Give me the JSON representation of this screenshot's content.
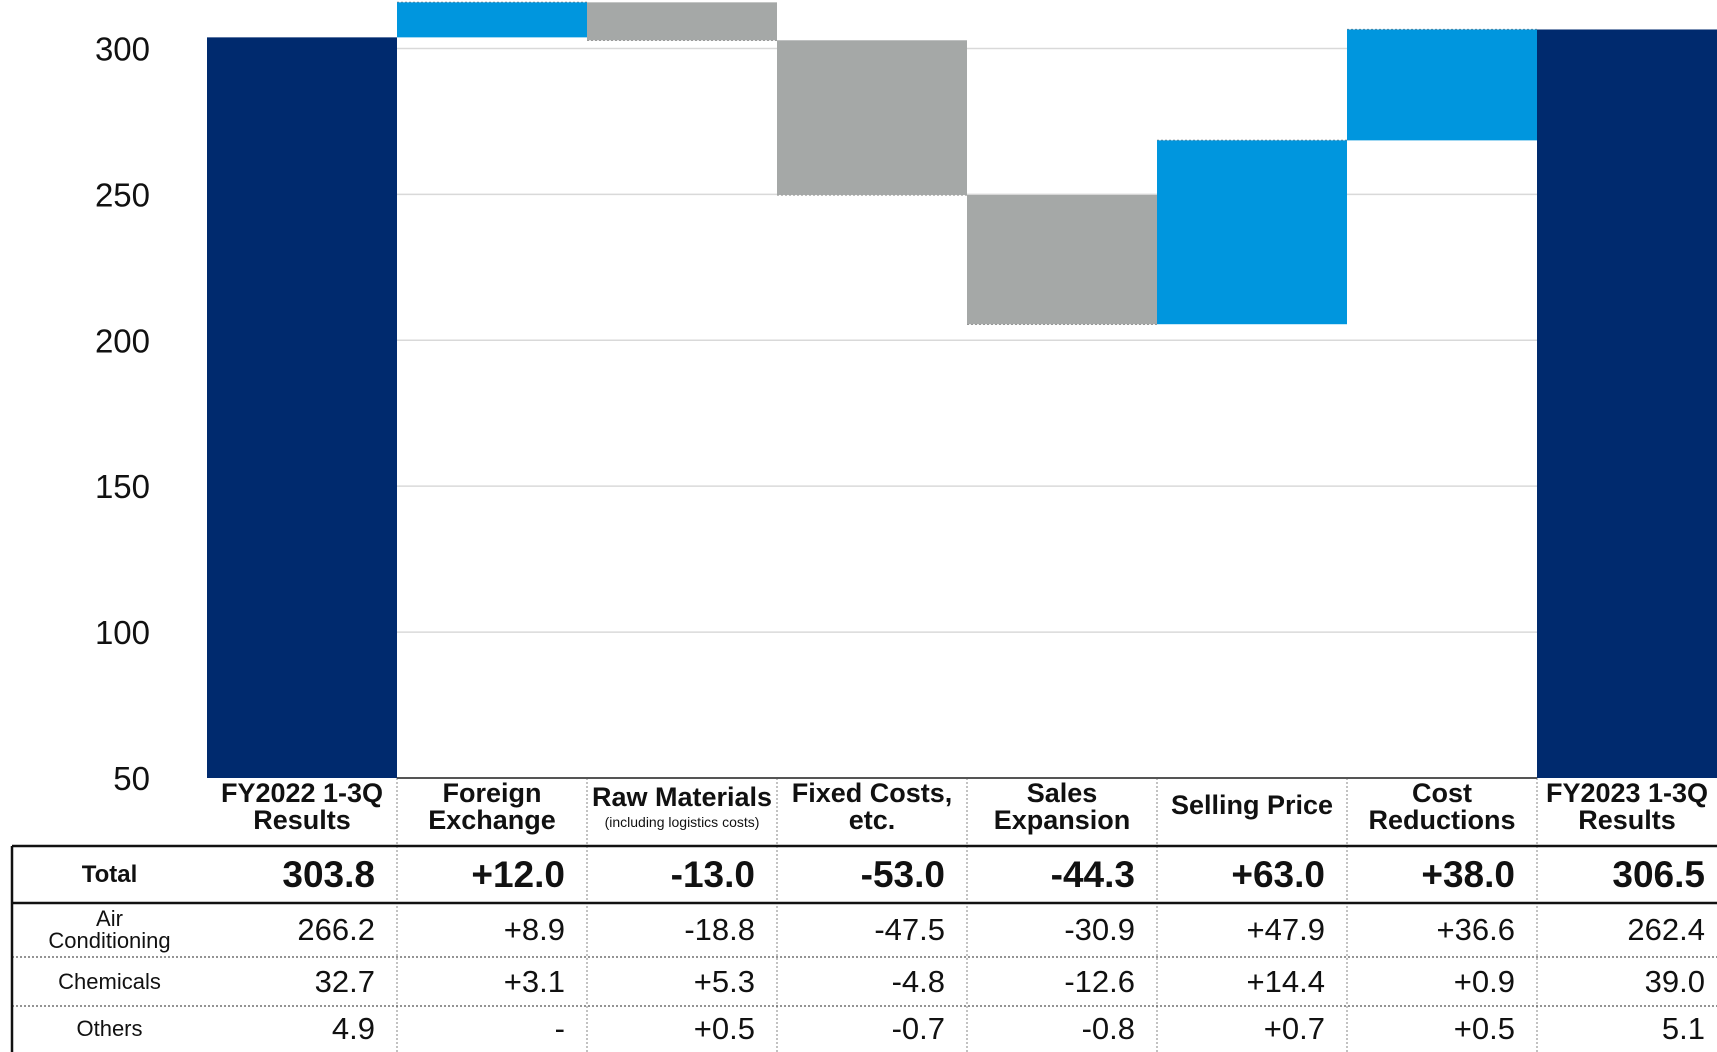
{
  "chart_data": {
    "type": "bar",
    "subtype": "waterfall",
    "ylim": [
      50,
      310
    ],
    "yticks": [
      50,
      100,
      150,
      200,
      250,
      300
    ],
    "grid": true,
    "categories": [
      {
        "label": "FY2022 1-3Q\nResults",
        "sublabel": "",
        "kind": "total",
        "value": 303.8
      },
      {
        "label": "Foreign\nExchange",
        "sublabel": "",
        "kind": "delta",
        "value": 12.0
      },
      {
        "label": "Raw Materials",
        "sublabel": "(including logistics costs)",
        "kind": "delta",
        "value": -13.0
      },
      {
        "label": "Fixed Costs,\netc.",
        "sublabel": "",
        "kind": "delta",
        "value": -53.0
      },
      {
        "label": "Sales\nExpansion",
        "sublabel": "",
        "kind": "delta",
        "value": -44.3
      },
      {
        "label": "Selling Price",
        "sublabel": "",
        "kind": "delta",
        "value": 63.0
      },
      {
        "label": "Cost\nReductions",
        "sublabel": "",
        "kind": "delta",
        "value": 38.0
      },
      {
        "label": "FY2023 1-3Q\nResults",
        "sublabel": "",
        "kind": "total",
        "value": 306.5
      }
    ],
    "colors": {
      "total": "#002a6e",
      "increase": "#0096de",
      "decrease": "#a5a8a7",
      "grid": "#d9d9d9",
      "separator": "#999999"
    }
  },
  "table": {
    "rows": [
      {
        "name": "Total",
        "cells": [
          "303.8",
          "+12.0",
          "-13.0",
          "-53.0",
          "-44.3",
          "+63.0",
          "+38.0",
          "306.5"
        ]
      },
      {
        "name": "Air\nConditioning",
        "cells": [
          "266.2",
          "+8.9",
          "-18.8",
          "-47.5",
          "-30.9",
          "+47.9",
          "+36.6",
          "262.4"
        ]
      },
      {
        "name": "Chemicals",
        "cells": [
          "32.7",
          "+3.1",
          "+5.3",
          "-4.8",
          "-12.6",
          "+14.4",
          "+0.9",
          "39.0"
        ]
      },
      {
        "name": "Others",
        "cells": [
          "4.9",
          "-",
          "+0.5",
          "-0.7",
          "-0.8",
          "+0.7",
          "+0.5",
          "5.1"
        ]
      }
    ]
  }
}
